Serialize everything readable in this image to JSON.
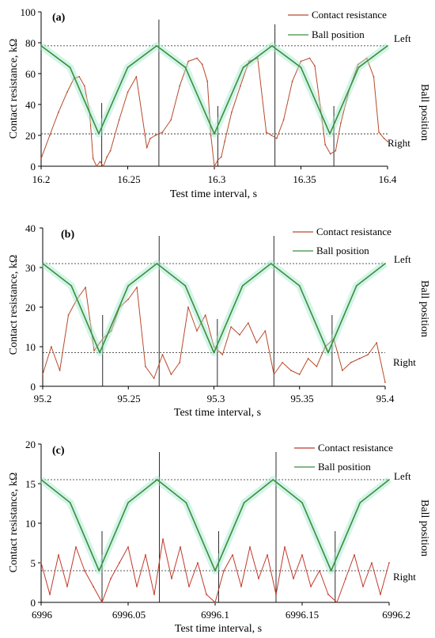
{
  "figure": {
    "panels": [
      {
        "label": "(a)",
        "xlabel": "Test time interval, s",
        "ylabel": "Contact resistance, kΩ",
        "right_label": "Ball position",
        "legend": [
          "Contact resistance",
          "Ball position"
        ],
        "ref_labels": [
          "Left",
          "Right"
        ],
        "xtick_labels": [
          "16.2",
          "16.25",
          "16.3",
          "16.35",
          "16.4"
        ],
        "ytick_labels": [
          "0",
          "20",
          "40",
          "60",
          "80",
          "100"
        ]
      },
      {
        "label": "(b)",
        "xlabel": "Test time interval, s",
        "ylabel": "Contact resistance, kΩ",
        "right_label": "Ball position",
        "legend": [
          "Contact resistance",
          "Ball position"
        ],
        "ref_labels": [
          "Left",
          "Right"
        ],
        "xtick_labels": [
          "95.2",
          "95.25",
          "95.3",
          "95.35",
          "95.4"
        ],
        "ytick_labels": [
          "0",
          "10",
          "20",
          "30",
          "40"
        ]
      },
      {
        "label": "(c)",
        "xlabel": "Test time interval, s",
        "ylabel": "Contact resistance, kΩ",
        "right_label": "Ball position",
        "legend": [
          "Contact resistance",
          "Ball position"
        ],
        "ref_labels": [
          "Left",
          "Right"
        ],
        "xtick_labels": [
          "6996",
          "6996.05",
          "6996.1",
          "6996.15",
          "6996.2"
        ],
        "ytick_labels": [
          "0",
          "5",
          "10",
          "15",
          "20"
        ]
      }
    ]
  },
  "chart_data": [
    {
      "type": "line",
      "title": "(a)",
      "xlabel": "Test time interval, s",
      "ylabel": "Contact resistance, kΩ",
      "xlim": [
        16.2,
        16.4
      ],
      "ylim": [
        0,
        100
      ],
      "xticks": [
        16.2,
        16.25,
        16.3,
        16.35,
        16.4
      ],
      "yticks": [
        0,
        20,
        40,
        60,
        80,
        100
      ],
      "reference_lines": [
        {
          "label": "Left",
          "y": 78
        },
        {
          "label": "Right",
          "y": 21
        }
      ],
      "marker_lines_x": [
        16.235,
        16.268,
        16.302,
        16.335,
        16.369
      ],
      "marker_lines_top": [
        41,
        95,
        39,
        92,
        39
      ],
      "series": [
        {
          "name": "Contact resistance",
          "color": "#b84a2a",
          "x": [
            16.2,
            16.205,
            16.21,
            16.215,
            16.219,
            16.222,
            16.225,
            16.228,
            16.23,
            16.232,
            16.234,
            16.236,
            16.238,
            16.24,
            16.245,
            16.25,
            16.255,
            16.26,
            16.261,
            16.263,
            16.266,
            16.27,
            16.275,
            16.28,
            16.285,
            16.29,
            16.293,
            16.296,
            16.298,
            16.3,
            16.302,
            16.304,
            16.306,
            16.31,
            16.315,
            16.32,
            16.325,
            16.33,
            16.333,
            16.336,
            16.34,
            16.345,
            16.35,
            16.355,
            16.358,
            16.361,
            16.364,
            16.367,
            16.37,
            16.373,
            16.378,
            16.383,
            16.388,
            16.392,
            16.395,
            16.398,
            16.4
          ],
          "y": [
            5,
            20,
            35,
            48,
            57,
            58,
            52,
            35,
            5,
            0,
            3,
            0,
            6,
            10,
            30,
            48,
            58,
            20,
            12,
            18,
            20,
            22,
            30,
            52,
            68,
            70,
            66,
            55,
            20,
            0,
            4,
            6,
            16,
            35,
            52,
            68,
            70,
            22,
            20,
            18,
            30,
            55,
            68,
            70,
            65,
            40,
            14,
            8,
            10,
            28,
            50,
            66,
            70,
            58,
            22,
            18,
            16
          ]
        },
        {
          "name": "Ball position",
          "color": "#3a8f3a",
          "x": [
            16.2,
            16.2167,
            16.2333,
            16.25,
            16.2667,
            16.2833,
            16.3,
            16.3167,
            16.3333,
            16.35,
            16.3667,
            16.3833,
            16.4
          ],
          "y": [
            78,
            64,
            21,
            64,
            78,
            64,
            21,
            64,
            78,
            64,
            21,
            64,
            78
          ]
        }
      ]
    },
    {
      "type": "line",
      "title": "(b)",
      "xlabel": "Test time interval, s",
      "ylabel": "Contact resistance, kΩ",
      "xlim": [
        95.2,
        95.4
      ],
      "ylim": [
        0,
        40
      ],
      "xticks": [
        95.2,
        95.25,
        95.3,
        95.35,
        95.4
      ],
      "yticks": [
        0,
        10,
        20,
        30,
        40
      ],
      "reference_lines": [
        {
          "label": "Left",
          "y": 31
        },
        {
          "label": "Right",
          "y": 8.5
        }
      ],
      "marker_lines_x": [
        95.235,
        95.268,
        95.302,
        95.335,
        95.369
      ],
      "marker_lines_top": [
        18,
        38,
        17,
        38,
        18
      ],
      "series": [
        {
          "name": "Contact resistance",
          "color": "#b84a2a",
          "x": [
            95.2,
            95.205,
            95.21,
            95.215,
            95.22,
            95.225,
            95.23,
            95.235,
            95.24,
            95.245,
            95.25,
            95.255,
            95.26,
            95.265,
            95.27,
            95.275,
            95.28,
            95.285,
            95.29,
            95.295,
            95.3,
            95.305,
            95.31,
            95.315,
            95.32,
            95.325,
            95.33,
            95.335,
            95.34,
            95.345,
            95.35,
            95.355,
            95.36,
            95.365,
            95.37,
            95.375,
            95.38,
            95.385,
            95.39,
            95.395,
            95.4
          ],
          "y": [
            3,
            10,
            4,
            18,
            22,
            25,
            9,
            12,
            14,
            20,
            22,
            25,
            5,
            2,
            8,
            3,
            6,
            20,
            14,
            18,
            10,
            8,
            15,
            13,
            16,
            11,
            14,
            3,
            6,
            4,
            3,
            7,
            5,
            10,
            12,
            4,
            6,
            7,
            8,
            11,
            1
          ]
        },
        {
          "name": "Ball position",
          "color": "#3a8f3a",
          "x": [
            95.2,
            95.2167,
            95.2333,
            95.25,
            95.2667,
            95.2833,
            95.3,
            95.3167,
            95.3333,
            95.35,
            95.3667,
            95.3833,
            95.4
          ],
          "y": [
            31,
            25.4,
            8.5,
            25.4,
            31,
            25.4,
            8.5,
            25.4,
            31,
            25.4,
            8.5,
            25.4,
            31
          ]
        }
      ]
    },
    {
      "type": "line",
      "title": "(c)",
      "xlabel": "Test time interval, s",
      "ylabel": "Contact resistance, kΩ",
      "xlim": [
        6996,
        6996.2
      ],
      "ylim": [
        0,
        20
      ],
      "xticks": [
        6996,
        6996.05,
        6996.1,
        6996.15,
        6996.2
      ],
      "yticks": [
        0,
        5,
        10,
        15,
        20
      ],
      "reference_lines": [
        {
          "label": "Left",
          "y": 15.5
        },
        {
          "label": "Right",
          "y": 4
        }
      ],
      "marker_lines_x": [
        6996.035,
        6996.068,
        6996.102,
        6996.135,
        6996.169
      ],
      "marker_lines_top": [
        9,
        19,
        9,
        19,
        9
      ],
      "series": [
        {
          "name": "Contact resistance",
          "color": "#c0392b",
          "x": [
            6996,
            6996.005,
            6996.01,
            6996.015,
            6996.02,
            6996.025,
            6996.03,
            6996.035,
            6996.04,
            6996.045,
            6996.05,
            6996.055,
            6996.06,
            6996.065,
            6996.07,
            6996.075,
            6996.08,
            6996.085,
            6996.09,
            6996.095,
            6996.1,
            6996.105,
            6996.11,
            6996.115,
            6996.12,
            6996.125,
            6996.13,
            6996.135,
            6996.14,
            6996.145,
            6996.15,
            6996.155,
            6996.16,
            6996.165,
            6996.17,
            6996.175,
            6996.18,
            6996.185,
            6996.19,
            6996.195,
            6996.2
          ],
          "y": [
            5,
            1,
            6,
            2,
            7,
            4,
            2,
            0,
            3,
            5,
            7,
            2,
            6,
            1,
            8,
            3,
            7,
            2,
            5,
            1,
            0,
            4,
            6,
            2,
            7,
            3,
            6,
            1,
            7,
            3,
            6,
            2,
            4,
            1,
            0,
            3,
            6,
            2,
            5,
            1,
            5
          ]
        },
        {
          "name": "Ball position",
          "color": "#3a8f3a",
          "x": [
            6996,
            6996.0167,
            6996.0333,
            6996.05,
            6996.0667,
            6996.0833,
            6996.1,
            6996.1167,
            6996.1333,
            6996.15,
            6996.1667,
            6996.1833,
            6996.2
          ],
          "y": [
            15.5,
            12.6,
            4,
            12.6,
            15.5,
            12.6,
            4,
            12.6,
            15.5,
            12.6,
            4,
            12.6,
            15.5
          ]
        }
      ]
    }
  ]
}
